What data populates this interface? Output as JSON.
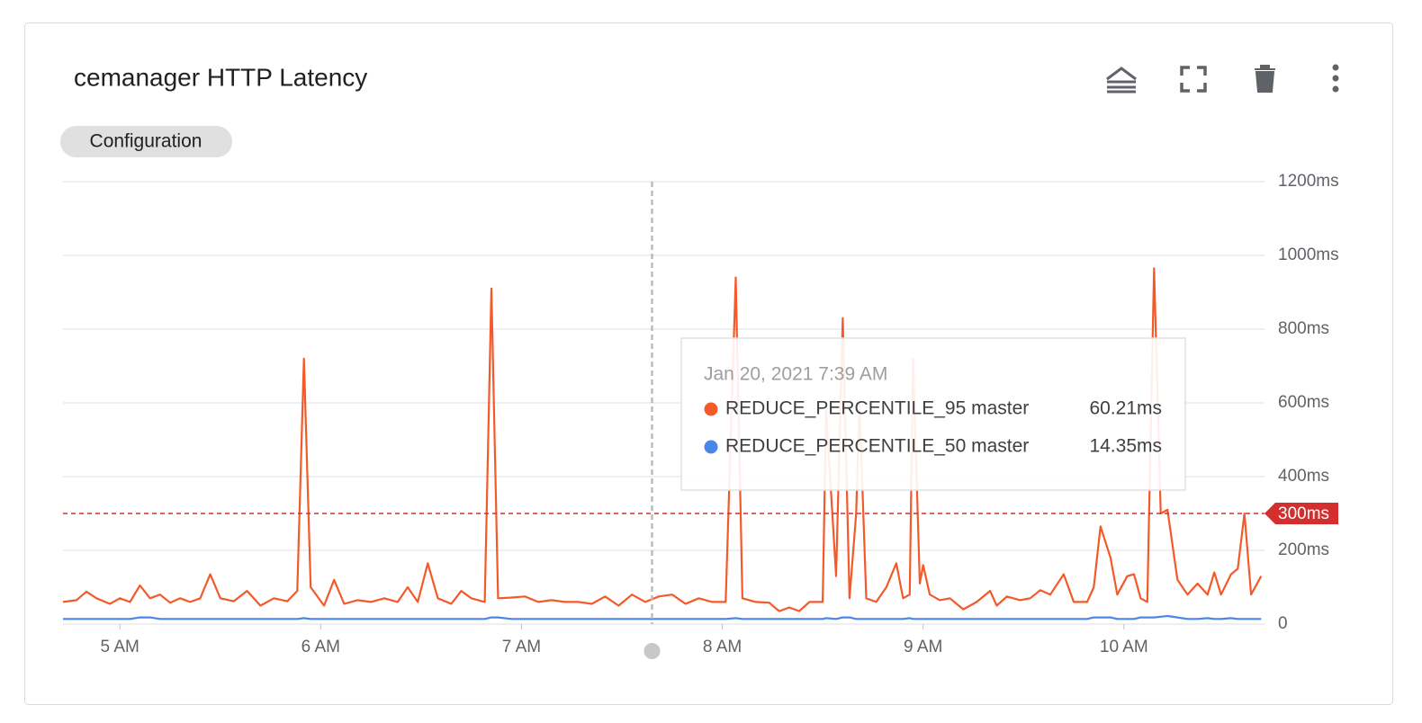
{
  "chart_data": {
    "type": "line",
    "title": "cemanager HTTP Latency",
    "x": [
      283,
      287,
      290,
      293,
      297,
      300,
      303,
      306,
      309,
      312,
      315,
      318,
      321,
      324,
      327,
      330,
      334,
      338,
      342,
      346,
      350,
      353,
      355,
      357,
      361,
      364,
      367,
      371,
      375,
      379,
      383,
      386,
      389,
      392,
      395,
      399,
      402,
      405,
      409,
      411,
      413,
      417,
      421,
      425,
      429,
      433,
      437,
      441,
      445,
      449,
      453,
      457,
      461,
      465,
      469,
      473,
      477,
      481,
      484,
      486,
      490,
      494,
      497,
      500,
      503,
      506,
      510,
      511,
      514,
      516,
      518,
      520,
      521,
      523,
      526,
      529,
      532,
      534,
      536,
      537,
      539,
      540,
      542,
      545,
      548,
      552,
      556,
      560,
      562,
      565,
      569,
      572,
      575,
      578,
      582,
      585,
      589,
      591,
      593,
      596,
      598,
      601,
      603,
      605,
      607,
      609,
      611,
      613,
      616,
      619,
      622,
      625,
      627,
      629,
      632,
      634,
      636,
      638,
      641
    ],
    "series": [
      {
        "name": "REDUCE_PERCENTILE_95 master",
        "color": "#f4592a",
        "values": [
          60,
          65,
          88,
          70,
          55,
          70,
          60,
          105,
          70,
          80,
          58,
          70,
          60,
          70,
          135,
          70,
          62,
          90,
          50,
          70,
          62,
          90,
          720,
          100,
          50,
          120,
          55,
          65,
          60,
          70,
          60,
          100,
          60,
          165,
          70,
          55,
          90,
          70,
          60,
          910,
          70,
          72,
          75,
          60,
          65,
          60,
          60,
          55,
          75,
          50,
          80,
          60,
          75,
          80,
          55,
          70,
          60,
          60,
          940,
          70,
          60,
          58,
          35,
          45,
          35,
          60,
          60,
          580,
          130,
          830,
          70,
          300,
          600,
          70,
          60,
          100,
          165,
          70,
          80,
          720,
          110,
          160,
          80,
          65,
          70,
          40,
          60,
          90,
          50,
          75,
          65,
          70,
          92,
          80,
          135,
          60,
          60,
          100,
          265,
          180,
          80,
          130,
          135,
          70,
          60,
          965,
          300,
          310,
          120,
          80,
          110,
          80,
          140,
          80,
          135,
          150,
          300,
          80,
          130
        ]
      },
      {
        "name": "REDUCE_PERCENTILE_50 master",
        "color": "#4a86e8",
        "values": [
          14,
          14,
          14,
          14,
          14,
          14,
          14,
          18,
          18,
          14,
          14,
          14,
          14,
          14,
          14,
          14,
          14,
          14,
          14,
          14,
          14,
          14,
          16,
          14,
          14,
          14,
          14,
          14,
          14,
          14,
          14,
          14,
          14,
          14,
          14,
          14,
          14,
          14,
          14,
          18,
          18,
          14,
          14,
          14,
          14,
          14,
          14,
          14,
          14,
          14,
          14,
          14,
          14,
          14,
          14,
          14,
          14,
          14,
          16,
          14,
          14,
          14,
          14,
          14,
          14,
          14,
          14,
          16,
          14,
          18,
          18,
          14,
          14,
          14,
          14,
          14,
          14,
          14,
          16,
          14,
          14,
          14,
          14,
          14,
          14,
          14,
          14,
          14,
          14,
          14,
          14,
          14,
          14,
          14,
          14,
          14,
          14,
          18,
          18,
          18,
          14,
          14,
          14,
          18,
          18,
          18,
          20,
          22,
          18,
          14,
          14,
          16,
          14,
          14,
          16,
          14,
          14,
          14,
          14
        ]
      }
    ],
    "xlim": [
      283,
      642
    ],
    "xticks": [
      {
        "value": 300,
        "label": "5 AM"
      },
      {
        "value": 360,
        "label": "6 AM"
      },
      {
        "value": 420,
        "label": "7 AM"
      },
      {
        "value": 480,
        "label": "8 AM"
      },
      {
        "value": 540,
        "label": "9 AM"
      },
      {
        "value": 600,
        "label": "10 AM"
      }
    ],
    "ylim": [
      0,
      1200
    ],
    "yticks": [
      0,
      {
        "value": 200,
        "label": "200ms"
      },
      {
        "value": 400,
        "label": "400ms"
      },
      {
        "value": 600,
        "label": "600ms"
      },
      {
        "value": 800,
        "label": "800ms"
      },
      {
        "value": 1000,
        "label": "1000ms"
      },
      {
        "value": 1200,
        "label": "1200ms"
      }
    ],
    "grid": true,
    "threshold": {
      "value": 300,
      "label": "300ms",
      "color": "#d32f2f"
    },
    "tooltip": {
      "x": 459,
      "title": "Jan 20, 2021 7:39 AM",
      "values": [
        60.21,
        14.35
      ],
      "value_labels": [
        "60.21ms",
        "14.35ms"
      ]
    }
  },
  "filter_chip": "Configuration"
}
